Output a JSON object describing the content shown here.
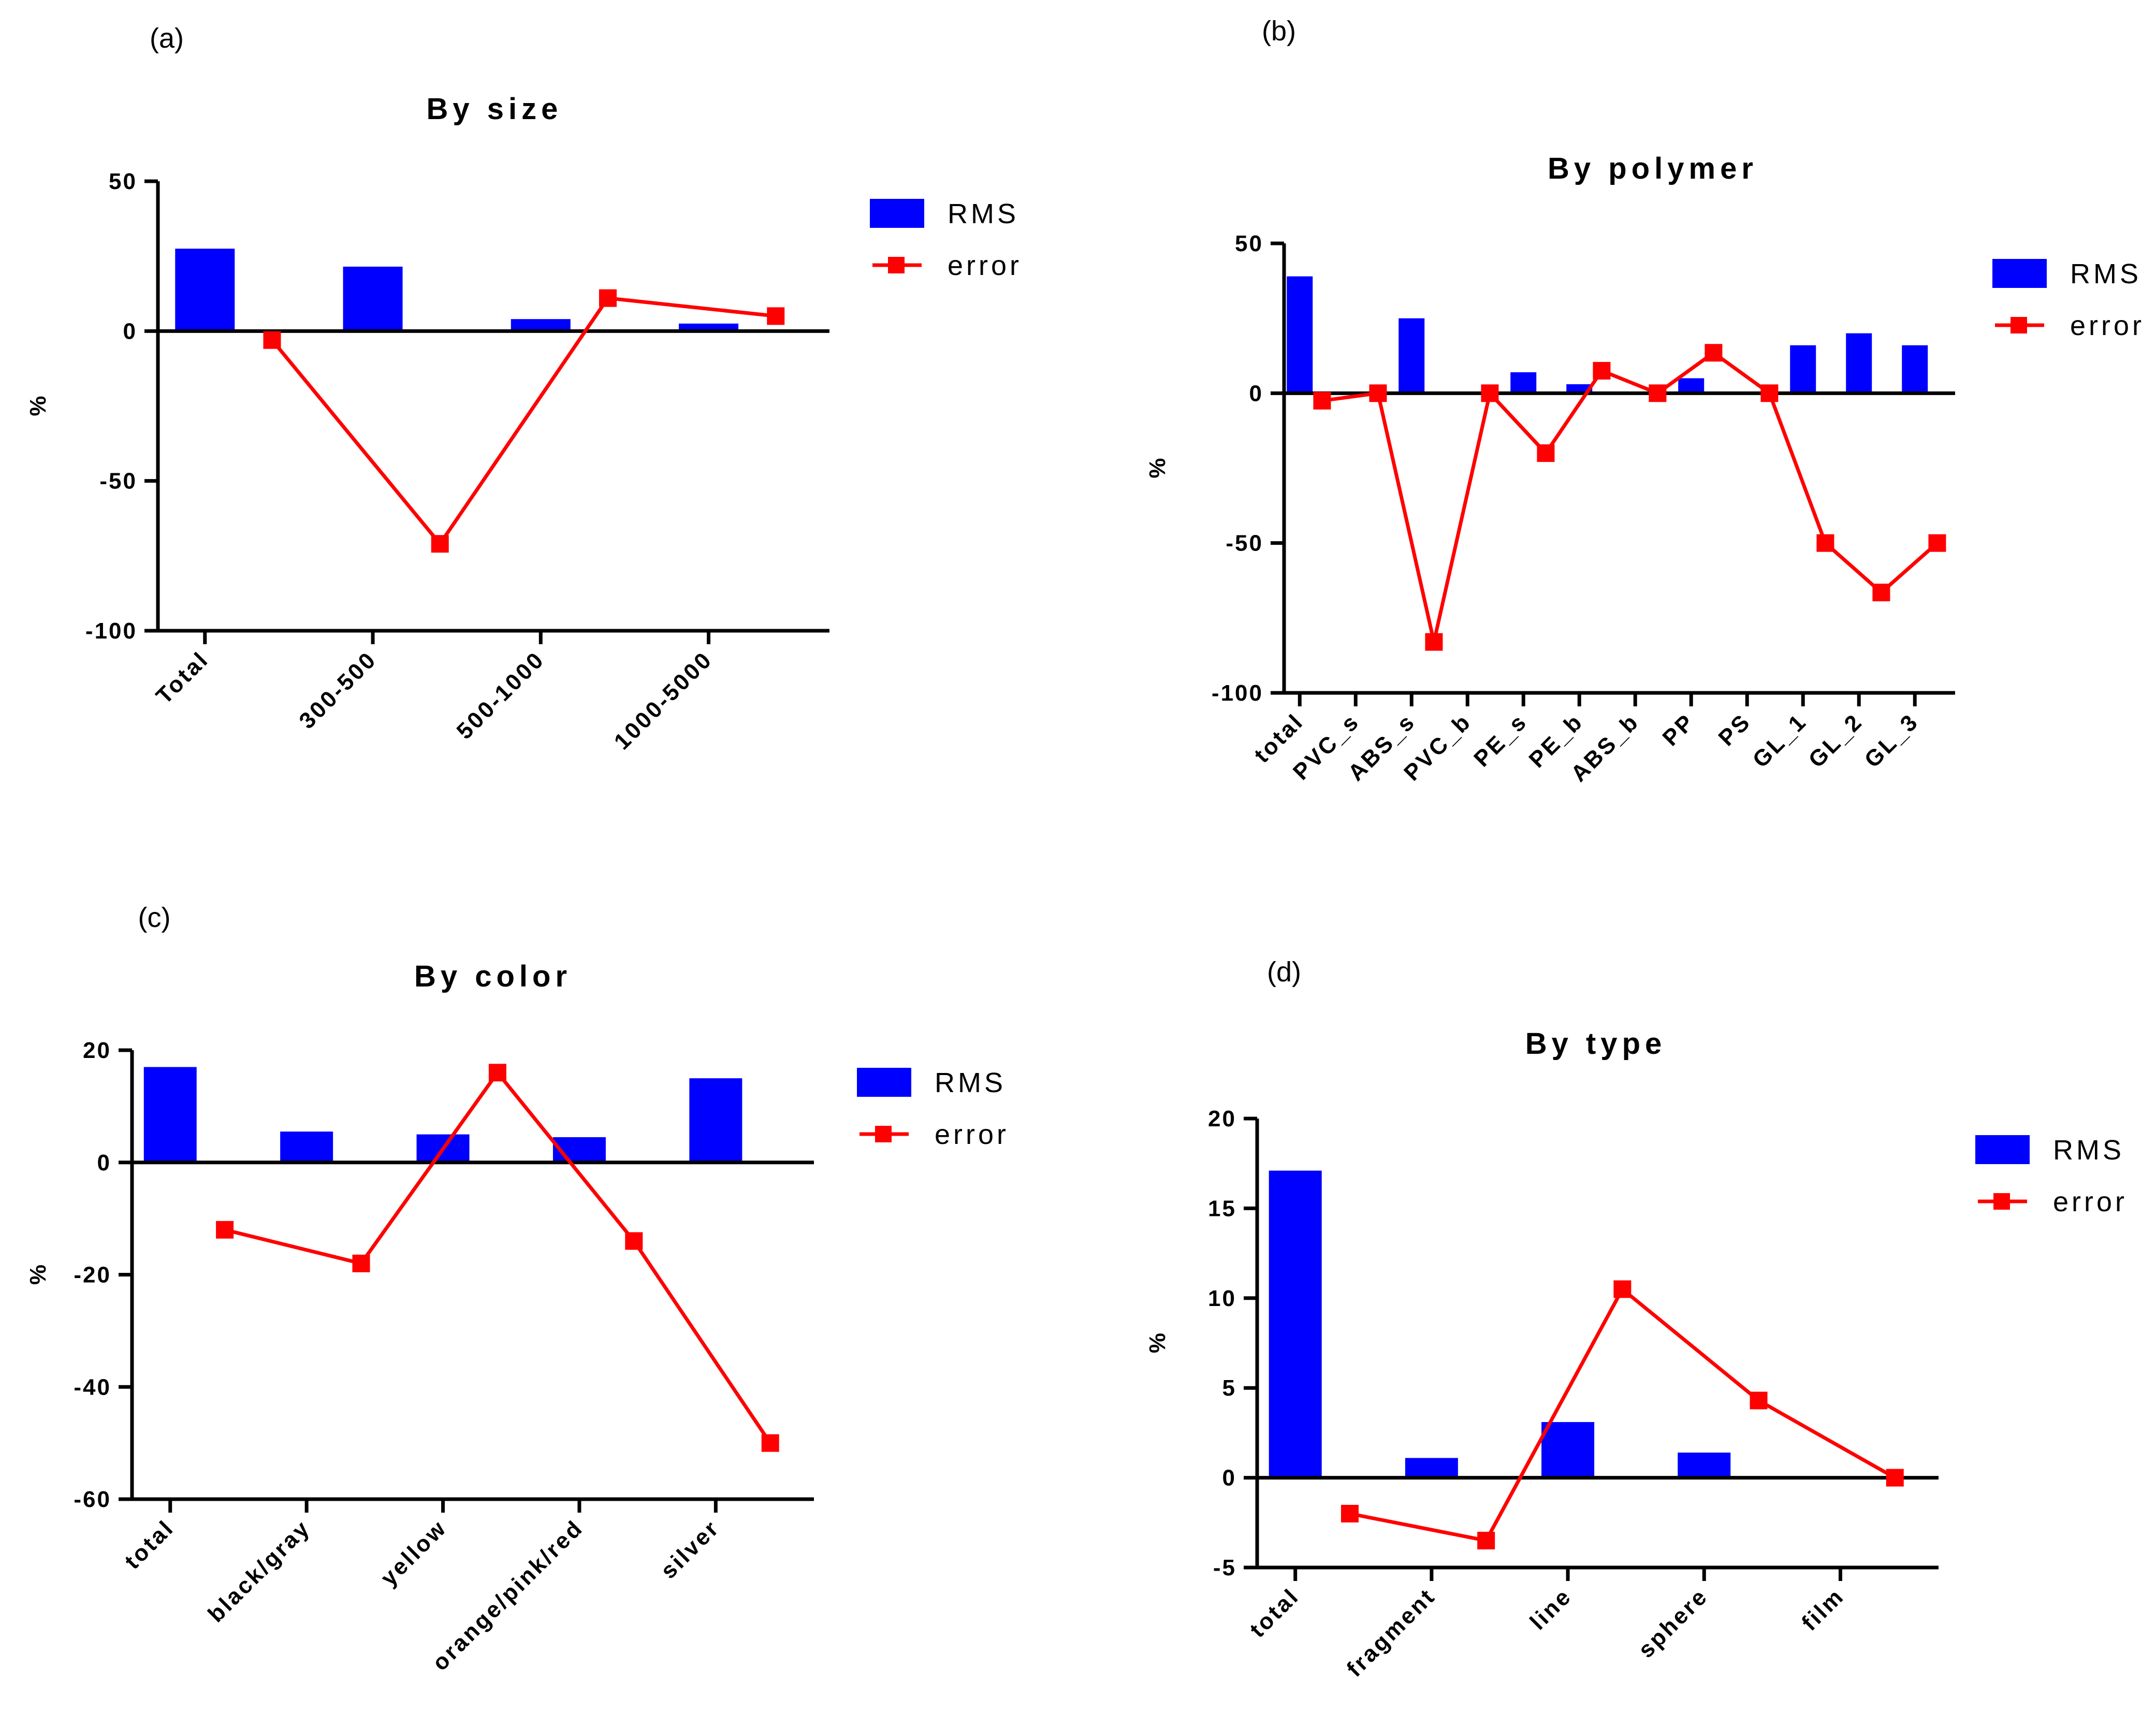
{
  "colors": {
    "rms": "#0000FF",
    "error": "#FF0000",
    "axis": "#000000"
  },
  "chart_data": [
    {
      "panel": "(a)",
      "type": "bar+line",
      "title": "By size",
      "ylabel": "%",
      "ylim": [
        -100,
        50
      ],
      "yticks": [
        50,
        0,
        -50,
        -100
      ],
      "categories": [
        "Total",
        "300-500",
        "500-1000",
        "1000-5000"
      ],
      "series": [
        {
          "name": "RMS",
          "kind": "bar",
          "values": [
            27.5,
            21.5,
            4,
            2.5
          ]
        },
        {
          "name": "error",
          "kind": "line",
          "values": [
            -3,
            -71,
            11,
            5
          ]
        }
      ],
      "legend": [
        "RMS",
        "error"
      ]
    },
    {
      "panel": "(b)",
      "type": "bar+line",
      "title": "By polymer",
      "ylabel": "%",
      "ylim": [
        -100,
        50
      ],
      "yticks": [
        50,
        0,
        -50,
        -100
      ],
      "categories": [
        "total",
        "PVC_s",
        "ABS_s",
        "PVC_b",
        "PE_s",
        "PE_b",
        "ABS_b",
        "PP",
        "PS",
        "GL_1",
        "GL_2",
        "GL_3"
      ],
      "series": [
        {
          "name": "RMS",
          "kind": "bar",
          "values": [
            39,
            0,
            25,
            0,
            7,
            3,
            0,
            5,
            0,
            16,
            20,
            16
          ]
        },
        {
          "name": "error",
          "kind": "line",
          "values": [
            -2.5,
            0,
            -83,
            0,
            -20,
            7.5,
            0,
            13.5,
            0,
            -50,
            -66.5,
            -50
          ]
        }
      ],
      "legend": [
        "RMS",
        "error"
      ]
    },
    {
      "panel": "(c)",
      "type": "bar+line",
      "title": "By color",
      "ylabel": "%",
      "ylim": [
        -60,
        20
      ],
      "yticks": [
        20,
        0,
        -20,
        -40,
        -60
      ],
      "categories": [
        "total",
        "black/gray",
        "yellow",
        "orange/pink/red",
        "silver"
      ],
      "series": [
        {
          "name": "RMS",
          "kind": "bar",
          "values": [
            17,
            5.5,
            5,
            4.5,
            15
          ]
        },
        {
          "name": "error",
          "kind": "line",
          "values": [
            -12,
            -18,
            16,
            -14,
            -50
          ]
        }
      ],
      "legend": [
        "RMS",
        "error"
      ]
    },
    {
      "panel": "(d)",
      "type": "bar+line",
      "title": "By type",
      "ylabel": "%",
      "ylim": [
        -5,
        20
      ],
      "yticks": [
        20,
        15,
        10,
        5,
        0,
        -5
      ],
      "categories": [
        "total",
        "fragment",
        "line",
        "sphere",
        "film"
      ],
      "series": [
        {
          "name": "RMS",
          "kind": "bar",
          "values": [
            17.1,
            1.1,
            3.1,
            1.4,
            0
          ]
        },
        {
          "name": "error",
          "kind": "line",
          "values": [
            -2,
            -3.5,
            10.5,
            4.3,
            0
          ]
        }
      ],
      "legend": [
        "RMS",
        "error"
      ]
    }
  ]
}
